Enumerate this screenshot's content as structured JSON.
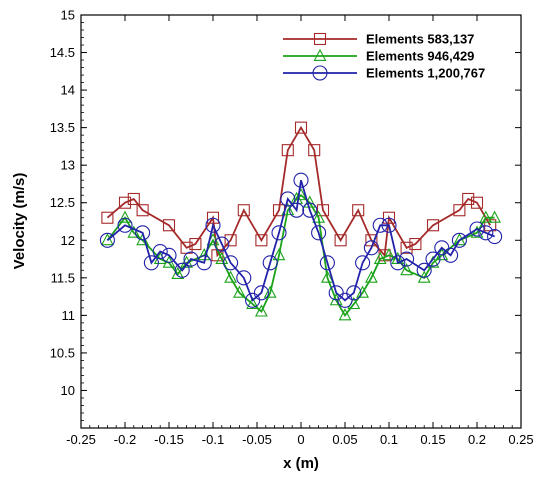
{
  "chart_data": {
    "type": "line",
    "title": "",
    "xlabel": "x (m)",
    "ylabel": "Velocity (m/s)",
    "xlim": [
      -0.25,
      0.25
    ],
    "ylim": [
      9.5,
      15
    ],
    "x_ticks": [
      "-0.25",
      "-0.2",
      "-0.15",
      "-0.1",
      "-0.05",
      "0",
      "0.05",
      "0.1",
      "0.15",
      "0.2",
      "0.25"
    ],
    "y_ticks": [
      "10",
      "10.5",
      "11",
      "11.5",
      "12",
      "12.5",
      "13",
      "13.5",
      "14",
      "14.5",
      "15"
    ],
    "grid": false,
    "legend_position": "top-right",
    "series": [
      {
        "name": "Elements 583,137",
        "color": "#a52a2a",
        "marker": "square",
        "points": [
          [
            -0.22,
            12.3
          ],
          [
            -0.2,
            12.5
          ],
          [
            -0.19,
            12.55
          ],
          [
            -0.18,
            12.4
          ],
          [
            -0.15,
            12.2
          ],
          [
            -0.13,
            11.9
          ],
          [
            -0.12,
            11.95
          ],
          [
            -0.1,
            12.3
          ],
          [
            -0.095,
            11.8
          ],
          [
            -0.08,
            12.0
          ],
          [
            -0.065,
            12.4
          ],
          [
            -0.045,
            12.0
          ],
          [
            -0.025,
            12.4
          ],
          [
            -0.015,
            13.2
          ],
          [
            0.0,
            13.5
          ],
          [
            0.015,
            13.2
          ],
          [
            0.025,
            12.4
          ],
          [
            0.045,
            12.0
          ],
          [
            0.065,
            12.4
          ],
          [
            0.08,
            12.0
          ],
          [
            0.095,
            11.8
          ],
          [
            0.1,
            12.3
          ],
          [
            0.12,
            11.9
          ],
          [
            0.13,
            11.95
          ],
          [
            0.15,
            12.2
          ],
          [
            0.18,
            12.4
          ],
          [
            0.19,
            12.55
          ],
          [
            0.2,
            12.5
          ],
          [
            0.215,
            12.2
          ]
        ]
      },
      {
        "name": "Elements 946,429",
        "color": "#1aa31a",
        "marker": "triangle",
        "points": [
          [
            -0.22,
            12.0
          ],
          [
            -0.2,
            12.3
          ],
          [
            -0.19,
            12.1
          ],
          [
            -0.18,
            12.0
          ],
          [
            -0.16,
            11.75
          ],
          [
            -0.15,
            11.7
          ],
          [
            -0.14,
            11.55
          ],
          [
            -0.13,
            11.7
          ],
          [
            -0.11,
            11.8
          ],
          [
            -0.1,
            12.0
          ],
          [
            -0.09,
            11.75
          ],
          [
            -0.08,
            11.5
          ],
          [
            -0.07,
            11.3
          ],
          [
            -0.055,
            11.15
          ],
          [
            -0.045,
            11.05
          ],
          [
            -0.035,
            11.3
          ],
          [
            -0.025,
            11.8
          ],
          [
            -0.015,
            12.4
          ],
          [
            -0.005,
            12.55
          ],
          [
            0.0,
            12.6
          ],
          [
            0.01,
            12.5
          ],
          [
            0.02,
            12.3
          ],
          [
            0.03,
            11.5
          ],
          [
            0.04,
            11.2
          ],
          [
            0.05,
            11.0
          ],
          [
            0.06,
            11.15
          ],
          [
            0.07,
            11.3
          ],
          [
            0.08,
            11.5
          ],
          [
            0.09,
            11.75
          ],
          [
            0.1,
            11.8
          ],
          [
            0.11,
            11.75
          ],
          [
            0.12,
            11.6
          ],
          [
            0.14,
            11.5
          ],
          [
            0.15,
            11.7
          ],
          [
            0.16,
            11.8
          ],
          [
            0.18,
            12.0
          ],
          [
            0.2,
            12.1
          ],
          [
            0.21,
            12.3
          ],
          [
            0.22,
            12.3
          ]
        ]
      },
      {
        "name": "Elements 1,200,767",
        "color": "#2222aa",
        "marker": "circle",
        "points": [
          [
            -0.22,
            12.0
          ],
          [
            -0.2,
            12.2
          ],
          [
            -0.18,
            12.1
          ],
          [
            -0.17,
            11.7
          ],
          [
            -0.16,
            11.85
          ],
          [
            -0.15,
            11.8
          ],
          [
            -0.135,
            11.6
          ],
          [
            -0.125,
            11.75
          ],
          [
            -0.11,
            11.7
          ],
          [
            -0.1,
            12.2
          ],
          [
            -0.09,
            11.95
          ],
          [
            -0.08,
            11.7
          ],
          [
            -0.065,
            11.5
          ],
          [
            -0.055,
            11.2
          ],
          [
            -0.045,
            11.3
          ],
          [
            -0.035,
            11.7
          ],
          [
            -0.025,
            12.1
          ],
          [
            -0.015,
            12.55
          ],
          [
            -0.005,
            12.4
          ],
          [
            0.0,
            12.8
          ],
          [
            0.01,
            12.4
          ],
          [
            0.02,
            12.1
          ],
          [
            0.03,
            11.7
          ],
          [
            0.04,
            11.3
          ],
          [
            0.05,
            11.2
          ],
          [
            0.06,
            11.3
          ],
          [
            0.07,
            11.7
          ],
          [
            0.08,
            11.9
          ],
          [
            0.09,
            12.2
          ],
          [
            0.1,
            12.2
          ],
          [
            0.11,
            11.7
          ],
          [
            0.12,
            11.75
          ],
          [
            0.14,
            11.6
          ],
          [
            0.15,
            11.75
          ],
          [
            0.16,
            11.9
          ],
          [
            0.17,
            11.8
          ],
          [
            0.18,
            12.0
          ],
          [
            0.2,
            12.15
          ],
          [
            0.21,
            12.1
          ],
          [
            0.22,
            12.05
          ]
        ]
      }
    ]
  }
}
